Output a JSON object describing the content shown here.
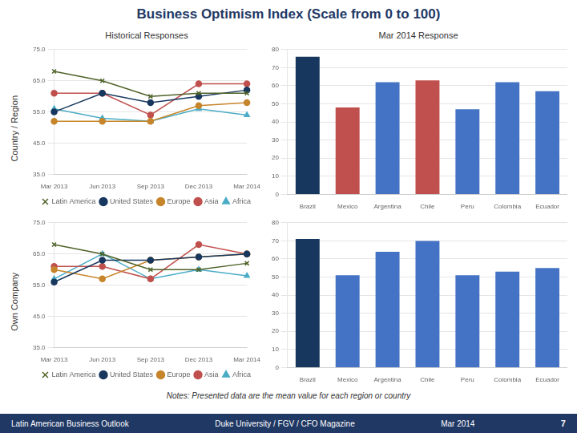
{
  "title": "Business Optimism Index (Scale from 0 to 100)",
  "annotations": [
    "Notes:  Presented data are the mean value for each region or country",
    "Latin American Business Outlook",
    "Duke University / FGV / CFO Magazine",
    "Mar 2014",
    "7"
  ],
  "chart_data": [
    {
      "type": "line",
      "subtitle": "Historical Responses",
      "ylabel": "Country / Region",
      "categories": [
        "Mar 2013",
        "Jun 2013",
        "Sep 2013",
        "Dec 2013",
        "Mar 2014"
      ],
      "series": [
        {
          "name": "Latin America",
          "color": "#4F6228",
          "marker": "cross",
          "values": [
            68,
            65,
            60,
            61,
            61
          ]
        },
        {
          "name": "United States",
          "color": "#17375E",
          "marker": "circle",
          "values": [
            55,
            61,
            58,
            60,
            62
          ]
        },
        {
          "name": "Europe",
          "color": "#C6852B",
          "marker": "circle",
          "values": [
            52,
            52,
            52,
            57,
            58
          ]
        },
        {
          "name": "Asia",
          "color": "#C0504D",
          "marker": "circle",
          "values": [
            61,
            61,
            54,
            64,
            64
          ]
        },
        {
          "name": "Africa",
          "color": "#4BACC6",
          "marker": "triangle",
          "values": [
            56,
            53,
            52,
            56,
            54
          ]
        }
      ],
      "ylim": [
        35,
        75
      ],
      "yticks": [
        {
          "value": 35,
          "label": "35.0"
        },
        {
          "value": 45,
          "label": "45.0"
        },
        {
          "value": 55,
          "label": "55.0"
        },
        {
          "value": 65,
          "label": "65.0"
        },
        {
          "value": 75,
          "label": "75.0"
        }
      ],
      "grid": true,
      "legend": "bottom"
    },
    {
      "type": "bar",
      "subtitle": "Mar 2014 Response",
      "categories": [
        "Brazil",
        "Mexico",
        "Argentina",
        "Chile",
        "Peru",
        "Colombia",
        "Ecuador"
      ],
      "values": [
        76,
        48,
        62,
        63,
        47,
        62,
        57
      ],
      "colors": [
        "#17375E",
        "#C0504D",
        "#4472C4",
        "#C0504D",
        "#4472C4",
        "#4472C4",
        "#4472C4"
      ],
      "ylim": [
        0,
        80
      ],
      "yticks": [
        0,
        10,
        20,
        30,
        40,
        50,
        60,
        70,
        80
      ],
      "grid": true
    },
    {
      "type": "line",
      "ylabel": "Own Company",
      "categories": [
        "Mar 2013",
        "Jun 2013",
        "Sep 2013",
        "Dec 2013",
        "Mar 2014"
      ],
      "series": [
        {
          "name": "Latin America",
          "color": "#4F6228",
          "marker": "cross",
          "values": [
            68,
            65,
            60,
            60,
            62
          ]
        },
        {
          "name": "United States",
          "color": "#17375E",
          "marker": "circle",
          "values": [
            56,
            63,
            63,
            64,
            65
          ]
        },
        {
          "name": "Europe",
          "color": "#C6852B",
          "marker": "circle",
          "values": [
            60,
            57,
            63,
            64,
            65
          ]
        },
        {
          "name": "Asia",
          "color": "#C0504D",
          "marker": "circle",
          "values": [
            61,
            61,
            57,
            68,
            65
          ]
        },
        {
          "name": "Africa",
          "color": "#4BACC6",
          "marker": "triangle",
          "values": [
            57,
            65,
            57,
            60,
            58
          ]
        }
      ],
      "ylim": [
        35,
        75
      ],
      "yticks": [
        {
          "value": 35,
          "label": "35.0"
        },
        {
          "value": 45,
          "label": "45.0"
        },
        {
          "value": 55,
          "label": "55.0"
        },
        {
          "value": 65,
          "label": "65.0"
        },
        {
          "value": 75,
          "label": "75.0"
        }
      ],
      "grid": true,
      "legend": "bottom"
    },
    {
      "type": "bar",
      "categories": [
        "Brazil",
        "Mexico",
        "Argentina",
        "Chile",
        "Peru",
        "Colombia",
        "Ecuador"
      ],
      "values": [
        71,
        51,
        64,
        70,
        51,
        53,
        55
      ],
      "colors": [
        "#17375E",
        "#4472C4",
        "#4472C4",
        "#4472C4",
        "#4472C4",
        "#4472C4",
        "#4472C4"
      ],
      "ylim": [
        0,
        80
      ],
      "yticks": [
        0,
        10,
        20,
        30,
        40,
        50,
        60,
        70,
        80
      ],
      "grid": true
    }
  ]
}
